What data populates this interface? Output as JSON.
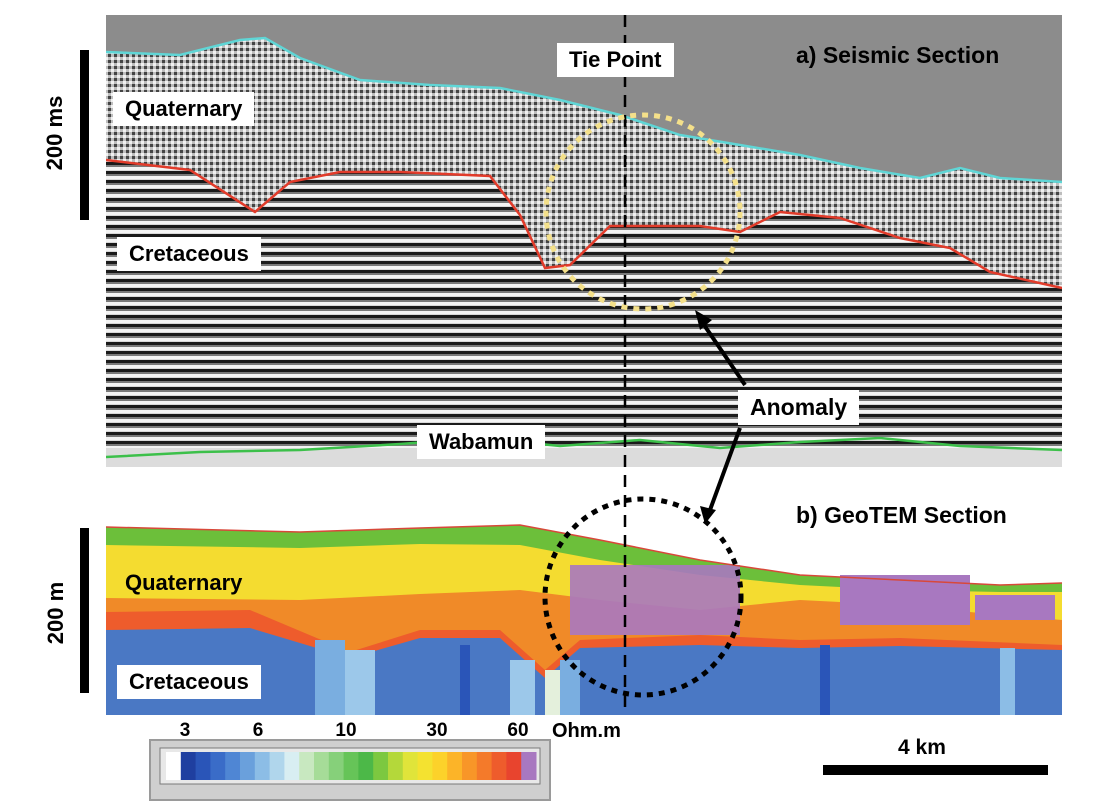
{
  "panel_a": {
    "title": "a) Seismic Section",
    "tie_point": "Tie Point",
    "quaternary": "Quaternary",
    "cretaceous": "Cretaceous",
    "wabamun": "Wabamun",
    "scale_label": "200 ms"
  },
  "anomaly": "Anomaly",
  "panel_b": {
    "title": "b) GeoTEM Section",
    "quaternary": "Quaternary",
    "cretaceous": "Cretaceous",
    "scale_label": "200 m"
  },
  "colorbar": {
    "ticks": [
      "3",
      "6",
      "10",
      "30",
      "60"
    ],
    "unit": "Ohm.m",
    "colors": [
      "#ffffff",
      "#1f3fa0",
      "#2a55b8",
      "#3a6cc8",
      "#4f86d4",
      "#6aa0dc",
      "#8cbde6",
      "#b0d6ec",
      "#d8eef2",
      "#c8e8c0",
      "#a6dc98",
      "#86d07a",
      "#66c458",
      "#4cb848",
      "#7cc840",
      "#b4d83a",
      "#e0e43a",
      "#f4e230",
      "#fcd22a",
      "#fcb428",
      "#f89628",
      "#f47a2a",
      "#ee5c2c",
      "#e8442e",
      "#a878c0"
    ]
  },
  "scale_bar": "4 km"
}
